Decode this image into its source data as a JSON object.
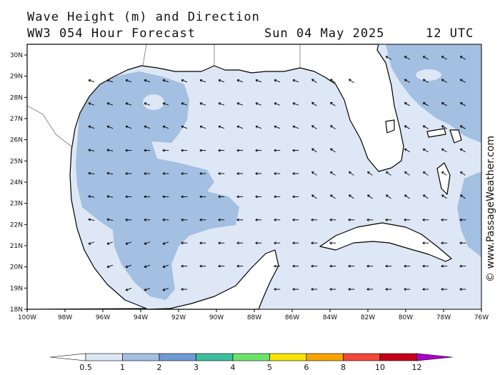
{
  "title": {
    "line1": "Wave Height (m) and Direction",
    "line2": "WW3 054 Hour Forecast",
    "date": "Sun 04 May 2025",
    "time": "12 UTC"
  },
  "credit": "© www.PassageWeather.com",
  "colors": {
    "land": "#ffffff",
    "coast": "#000000",
    "band_0_5_1": "#dde7f5",
    "band_1_2": "#a3bfe1",
    "arrow": "#000000"
  },
  "axes": {
    "lon_labels": [
      "100W",
      "98W",
      "96W",
      "94W",
      "92W",
      "90W",
      "88W",
      "86W",
      "84W",
      "82W",
      "80W",
      "78W",
      "76W"
    ],
    "lat_labels": [
      "18N",
      "19N",
      "20N",
      "21N",
      "22N",
      "23N",
      "24N",
      "25N",
      "26N",
      "27N",
      "28N",
      "29N",
      "30N"
    ]
  },
  "wave_direction": "arrows mostly point west to north-west across the Gulf of Mexico",
  "colorbar": {
    "labels": [
      "0.5",
      "1",
      "2",
      "3",
      "4",
      "5",
      "6",
      "8",
      "10",
      "12"
    ],
    "colors": [
      "#dde7f5",
      "#a3bfe1",
      "#6e9bd4",
      "#3cbf9f",
      "#6de36a",
      "#f5e400",
      "#f7a300",
      "#f04a3a",
      "#c4001a",
      "#b000c8"
    ]
  }
}
